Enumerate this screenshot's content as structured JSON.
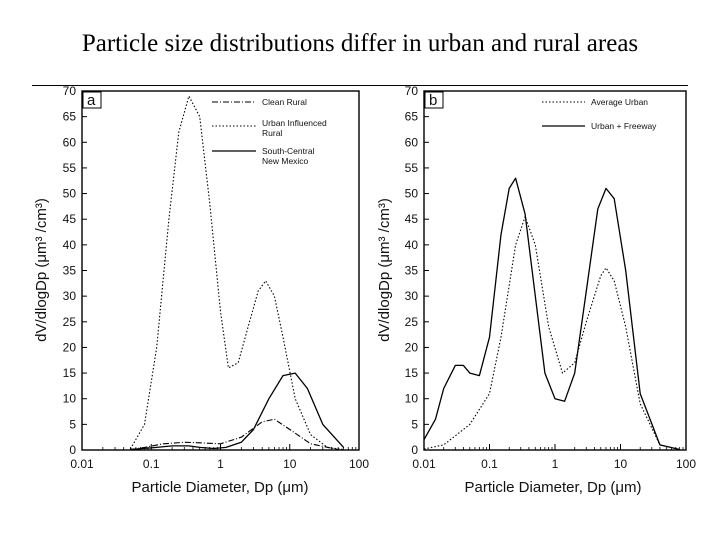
{
  "slide": {
    "title": "Particle size distributions differ in urban and rural areas"
  },
  "chart_data": [
    {
      "type": "line",
      "panel": "a",
      "xscale": "log",
      "xlim": [
        0.01,
        100
      ],
      "ylim": [
        0,
        70
      ],
      "xlabel": "Particle Diameter, Dp (μm)",
      "ylabel": "dV/dlogDp (μm³ /cm³)",
      "xticks": [
        "0.01",
        "0.1",
        "1",
        "10",
        "100"
      ],
      "yticks": [
        "0",
        "5",
        "10",
        "15",
        "20",
        "25",
        "30",
        "35",
        "40",
        "45",
        "50",
        "55",
        "60",
        "65",
        "70"
      ],
      "legend_position": "top-right",
      "series": [
        {
          "name": "Clean Rural",
          "style": "dash-dot",
          "x": [
            0.05,
            0.08,
            0.15,
            0.3,
            0.5,
            1.0,
            2.0,
            4.0,
            6.0,
            10,
            20,
            50
          ],
          "y": [
            0.1,
            0.5,
            1.2,
            1.5,
            1.4,
            1.2,
            2.5,
            5.5,
            6.0,
            4.0,
            1.2,
            0.1
          ]
        },
        {
          "name": "Urban Influenced Rural",
          "style": "dotted",
          "x": [
            0.05,
            0.08,
            0.12,
            0.18,
            0.25,
            0.35,
            0.5,
            0.7,
            1.0,
            1.3,
            1.8,
            2.5,
            3.5,
            4.5,
            6.0,
            8.0,
            12,
            20,
            35,
            60
          ],
          "y": [
            0.2,
            5,
            20,
            45,
            62,
            69,
            65,
            48,
            27,
            16,
            17,
            24,
            31,
            33,
            30,
            22,
            10,
            3,
            0.5,
            0.1
          ]
        },
        {
          "name": "South-Central New Mexico",
          "style": "solid",
          "x": [
            0.05,
            0.1,
            0.2,
            0.35,
            0.5,
            0.8,
            1.2,
            2.0,
            3.0,
            5.0,
            8.0,
            12,
            18,
            30,
            60
          ],
          "y": [
            0.1,
            0.4,
            0.8,
            0.8,
            0.5,
            0.3,
            0.5,
            1.5,
            4.0,
            10,
            14.5,
            15,
            12,
            5,
            0.5
          ]
        }
      ]
    },
    {
      "type": "line",
      "panel": "b",
      "xscale": "log",
      "xlim": [
        0.01,
        100
      ],
      "ylim": [
        0,
        70
      ],
      "xlabel": "Particle Diameter, Dp (μm)",
      "ylabel": "dV/dlogDp (μm³ /cm³)",
      "xticks": [
        "0.01",
        "0.1",
        "1",
        "10",
        "100"
      ],
      "yticks": [
        "0",
        "5",
        "10",
        "15",
        "20",
        "25",
        "30",
        "35",
        "40",
        "45",
        "50",
        "55",
        "60",
        "65",
        "70"
      ],
      "legend_position": "top-right",
      "series": [
        {
          "name": "Average Urban",
          "style": "dotted",
          "x": [
            0.01,
            0.02,
            0.05,
            0.1,
            0.15,
            0.25,
            0.35,
            0.5,
            0.8,
            1.3,
            2.0,
            3.0,
            5.0,
            6.0,
            8.0,
            12,
            20,
            40,
            80
          ],
          "y": [
            0.2,
            1.0,
            5,
            11,
            22,
            40,
            45.5,
            40,
            24,
            15,
            17,
            25,
            34,
            35.5,
            33,
            24,
            9,
            1,
            0.1
          ]
        },
        {
          "name": "Urban + Freeway",
          "style": "solid",
          "x": [
            0.01,
            0.015,
            0.02,
            0.03,
            0.04,
            0.05,
            0.07,
            0.1,
            0.15,
            0.2,
            0.25,
            0.35,
            0.5,
            0.7,
            1.0,
            1.4,
            2.0,
            3.0,
            4.5,
            6.0,
            8.0,
            12,
            20,
            40,
            80
          ],
          "y": [
            2,
            6,
            12,
            16.5,
            16.5,
            15,
            14.5,
            22,
            42,
            51,
            53,
            46,
            30,
            15,
            10,
            9.5,
            15,
            31,
            47,
            51,
            49,
            35,
            11,
            1,
            0.1
          ]
        }
      ]
    }
  ],
  "panels": [
    {
      "label": "a",
      "xlabel": "Particle Diameter, Dp (μm)",
      "ylabel": "dV/dlogDp (μm³ /cm³)",
      "xticks": [
        "0.01",
        "0.1",
        "1",
        "10",
        "100"
      ],
      "yticks": [
        "0",
        "5",
        "10",
        "15",
        "20",
        "25",
        "30",
        "35",
        "40",
        "45",
        "50",
        "55",
        "60",
        "65",
        "70"
      ],
      "legend": [
        {
          "line1": "Clean Rural",
          "line2": ""
        },
        {
          "line1": "Urban Influenced",
          "line2": "Rural"
        },
        {
          "line1": "South-Central",
          "line2": "New Mexico"
        }
      ]
    },
    {
      "label": "b",
      "xlabel": "Particle Diameter, Dp (μm)",
      "ylabel": "dV/dlogDp (μm³ /cm³)",
      "xticks": [
        "0.01",
        "0.1",
        "1",
        "10",
        "100"
      ],
      "yticks": [
        "0",
        "5",
        "10",
        "15",
        "20",
        "25",
        "30",
        "35",
        "40",
        "45",
        "50",
        "55",
        "60",
        "65",
        "70"
      ],
      "legend": [
        {
          "line1": "Average Urban",
          "line2": ""
        },
        {
          "line1": "Urban + Freeway",
          "line2": ""
        }
      ]
    }
  ],
  "colors": {
    "line": "#000000",
    "frame": "#000000"
  }
}
